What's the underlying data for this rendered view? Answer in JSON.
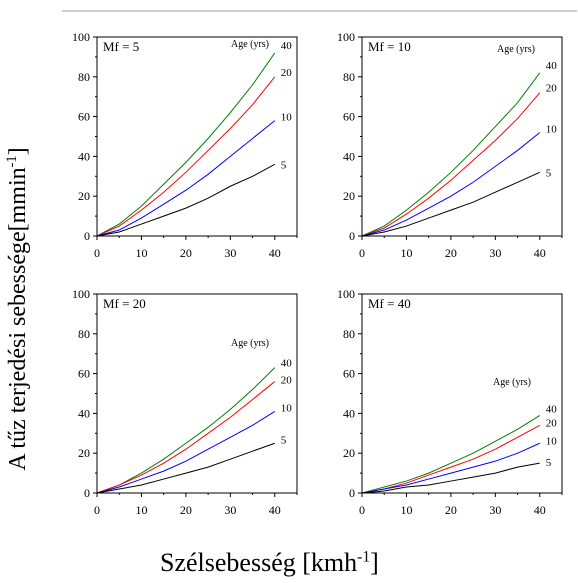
{
  "figure": {
    "xlabel_text": "Szélsebesség [kmh",
    "xlabel_sup": "-1",
    "xlabel_close": "]",
    "ylabel_text": "A tűz terjedési sebessége[mmin",
    "ylabel_sup": "-1",
    "ylabel_close": "]"
  },
  "chart_data": [
    {
      "type": "line",
      "title": "Mf = 5",
      "legend_title": "Age (yrs)",
      "xlim": [
        0,
        45
      ],
      "ylim": [
        0,
        100
      ],
      "xticks": [
        0,
        10,
        20,
        30,
        40
      ],
      "yticks": [
        0,
        20,
        40,
        60,
        80,
        100
      ],
      "x": [
        0,
        5,
        10,
        15,
        20,
        25,
        30,
        35,
        40
      ],
      "series": [
        {
          "name": "40",
          "color": "#008000",
          "values": [
            0,
            6,
            15,
            26,
            37,
            49,
            62,
            76,
            92
          ]
        },
        {
          "name": "20",
          "color": "#ff0000",
          "values": [
            0,
            5,
            13,
            22,
            32,
            43,
            54,
            66,
            80
          ]
        },
        {
          "name": "10",
          "color": "#0000ff",
          "values": [
            0,
            3,
            9,
            16,
            23,
            31,
            40,
            49,
            58
          ]
        },
        {
          "name": "5",
          "color": "#000000",
          "values": [
            0,
            2,
            6,
            10,
            14,
            19,
            25,
            30,
            36
          ]
        }
      ]
    },
    {
      "type": "line",
      "title": "Mf = 10",
      "legend_title": "Age (yrs)",
      "xlim": [
        0,
        45
      ],
      "ylim": [
        0,
        100
      ],
      "xticks": [
        0,
        10,
        20,
        30,
        40
      ],
      "yticks": [
        0,
        20,
        40,
        60,
        80,
        100
      ],
      "x": [
        0,
        5,
        10,
        15,
        20,
        25,
        30,
        35,
        40
      ],
      "series": [
        {
          "name": "40",
          "color": "#008000",
          "values": [
            0,
            5,
            13,
            22,
            32,
            43,
            55,
            67,
            82
          ]
        },
        {
          "name": "20",
          "color": "#ff0000",
          "values": [
            0,
            4,
            11,
            19,
            28,
            38,
            48,
            59,
            72
          ]
        },
        {
          "name": "10",
          "color": "#0000ff",
          "values": [
            0,
            3,
            8,
            14,
            20,
            27,
            35,
            43,
            52
          ]
        },
        {
          "name": "5",
          "color": "#000000",
          "values": [
            0,
            2,
            5,
            9,
            13,
            17,
            22,
            27,
            32
          ]
        }
      ]
    },
    {
      "type": "line",
      "title": "Mf = 20",
      "legend_title": "Age (yrs)",
      "xlim": [
        0,
        45
      ],
      "ylim": [
        0,
        100
      ],
      "xticks": [
        0,
        10,
        20,
        30,
        40
      ],
      "yticks": [
        0,
        20,
        40,
        60,
        80,
        100
      ],
      "x": [
        0,
        5,
        10,
        15,
        20,
        25,
        30,
        35,
        40
      ],
      "series": [
        {
          "name": "40",
          "color": "#008000",
          "values": [
            0,
            4,
            10,
            17,
            25,
            33,
            42,
            52,
            63
          ]
        },
        {
          "name": "20",
          "color": "#ff0000",
          "values": [
            0,
            4,
            9,
            15,
            22,
            30,
            38,
            47,
            56
          ]
        },
        {
          "name": "10",
          "color": "#0000ff",
          "values": [
            0,
            3,
            7,
            11,
            16,
            22,
            28,
            34,
            41
          ]
        },
        {
          "name": "5",
          "color": "#000000",
          "values": [
            0,
            2,
            4,
            7,
            10,
            13,
            17,
            21,
            25
          ]
        }
      ]
    },
    {
      "type": "line",
      "title": "Mf = 40",
      "legend_title": "Age (yrs)",
      "xlim": [
        0,
        45
      ],
      "ylim": [
        0,
        100
      ],
      "xticks": [
        0,
        10,
        20,
        30,
        40
      ],
      "yticks": [
        0,
        20,
        40,
        60,
        80,
        100
      ],
      "x": [
        0,
        5,
        10,
        15,
        20,
        25,
        30,
        35,
        40
      ],
      "series": [
        {
          "name": "40",
          "color": "#008000",
          "values": [
            0,
            3,
            6,
            10,
            15,
            20,
            26,
            32,
            39
          ]
        },
        {
          "name": "20",
          "color": "#ff0000",
          "values": [
            0,
            2,
            5,
            9,
            13,
            17,
            22,
            28,
            34
          ]
        },
        {
          "name": "10",
          "color": "#0000ff",
          "values": [
            0,
            2,
            4,
            7,
            10,
            13,
            16,
            20,
            25
          ]
        },
        {
          "name": "5",
          "color": "#000000",
          "values": [
            0,
            1,
            3,
            4,
            6,
            8,
            10,
            13,
            15
          ]
        }
      ]
    }
  ]
}
